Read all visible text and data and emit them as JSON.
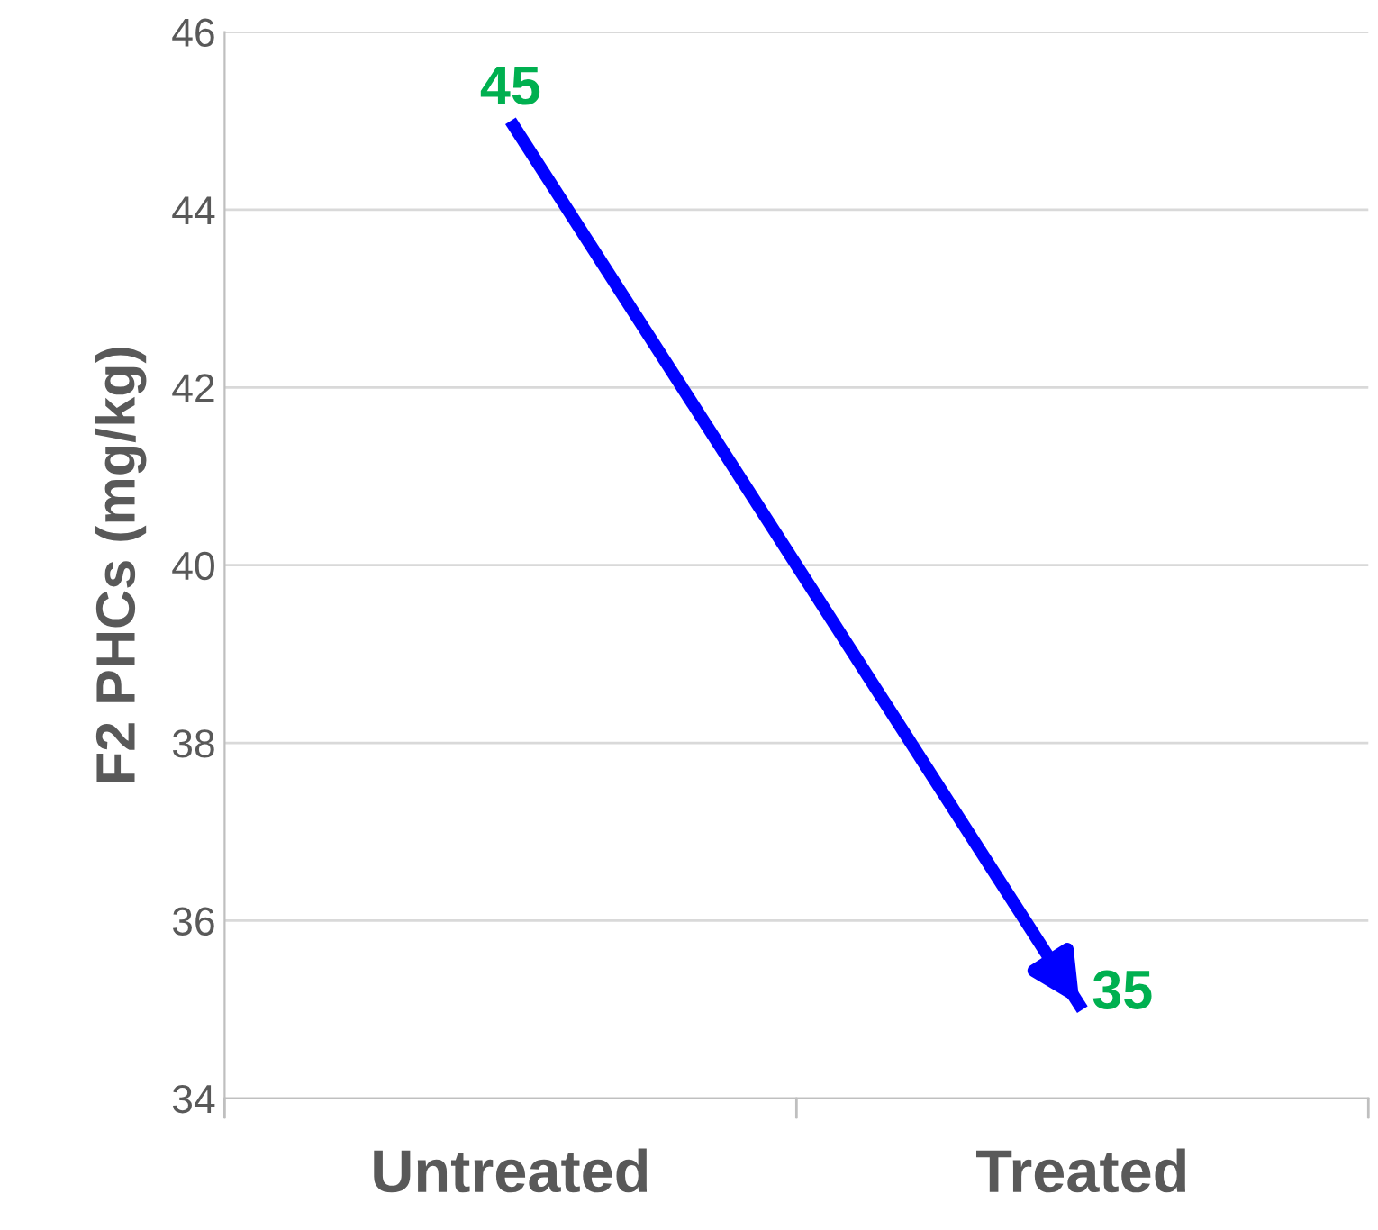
{
  "chart_data": {
    "type": "line",
    "ylabel": "F2 PHCs (mg/kg)",
    "categories": [
      "Untreated",
      "Treated"
    ],
    "series": [
      {
        "color": "#0000ff",
        "values": [
          45,
          35
        ]
      }
    ],
    "data_labels": true,
    "ylim": [
      34,
      46
    ],
    "yticks": [
      34,
      36,
      38,
      40,
      42,
      44,
      46
    ],
    "grid": "y",
    "marker": "none",
    "line_style": "solid"
  }
}
